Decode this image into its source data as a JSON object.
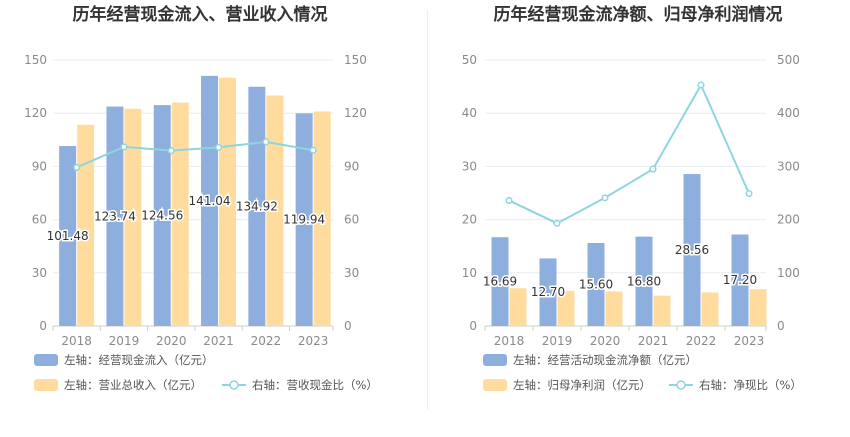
{
  "colors": {
    "bar1": "#8eaedd",
    "bar2": "#ffdc9e",
    "line": "#8dd6de",
    "grid": "#e9ecf2",
    "axis": "#cccccc"
  },
  "chart_data": [
    {
      "type": "bar",
      "title": "历年经营现金流入、营业收入情况",
      "categories": [
        "2018",
        "2019",
        "2020",
        "2021",
        "2022",
        "2023"
      ],
      "ylim_left": [
        0,
        150
      ],
      "ylim_right": [
        0,
        150
      ],
      "left_ticks": [
        "0",
        "30",
        "60",
        "90",
        "120",
        "150"
      ],
      "right_ticks": [
        "0",
        "30",
        "60",
        "90",
        "120",
        "150"
      ],
      "series": [
        {
          "name": "左轴：经营现金流入（亿元）",
          "kind": "bar",
          "axis": "left",
          "values": [
            101.48,
            123.74,
            124.56,
            141.04,
            134.92,
            119.94
          ],
          "labels": [
            "101.48",
            "123.74",
            "124.56",
            "141.04",
            "134.92",
            "119.94"
          ]
        },
        {
          "name": "左轴：营业总收入（亿元）",
          "kind": "bar",
          "axis": "left",
          "values": [
            113.5,
            122.5,
            126,
            140,
            130,
            121
          ]
        },
        {
          "name": "右轴：营收现金比（%）",
          "kind": "line",
          "axis": "right",
          "values": [
            89.4,
            101.0,
            98.9,
            100.7,
            103.8,
            99.1
          ]
        }
      ],
      "legend": [
        "左轴：经营现金流入（亿元）",
        "左轴：营业总收入（亿元）",
        "右轴：营收现金比（%）"
      ]
    },
    {
      "type": "bar",
      "title": "历年经营现金流净额、归母净利润情况",
      "categories": [
        "2018",
        "2019",
        "2020",
        "2021",
        "2022",
        "2023"
      ],
      "ylim_left": [
        0,
        50
      ],
      "ylim_right": [
        0,
        500
      ],
      "left_ticks": [
        "0",
        "10",
        "20",
        "30",
        "40",
        "50"
      ],
      "right_ticks": [
        "0",
        "100",
        "200",
        "300",
        "400",
        "500"
      ],
      "series": [
        {
          "name": "左轴：经营活动现金流净额（亿元）",
          "kind": "bar",
          "axis": "left",
          "values": [
            16.69,
            12.7,
            15.6,
            16.8,
            28.56,
            17.2
          ],
          "labels": [
            "16.69",
            "12.70",
            "15.60",
            "16.80",
            "28.56",
            "17.20"
          ]
        },
        {
          "name": "左轴：归母净利润（亿元）",
          "kind": "bar",
          "axis": "left",
          "values": [
            7.1,
            6.6,
            6.5,
            5.7,
            6.3,
            6.9
          ]
        },
        {
          "name": "右轴：净现比（%）",
          "kind": "line",
          "axis": "right",
          "values": [
            236,
            193,
            241,
            295,
            453,
            249
          ]
        }
      ],
      "legend": [
        "左轴：经营活动现金流净额（亿元）",
        "左轴：归母净利润（亿元）",
        "右轴：净现比（%）"
      ]
    }
  ]
}
